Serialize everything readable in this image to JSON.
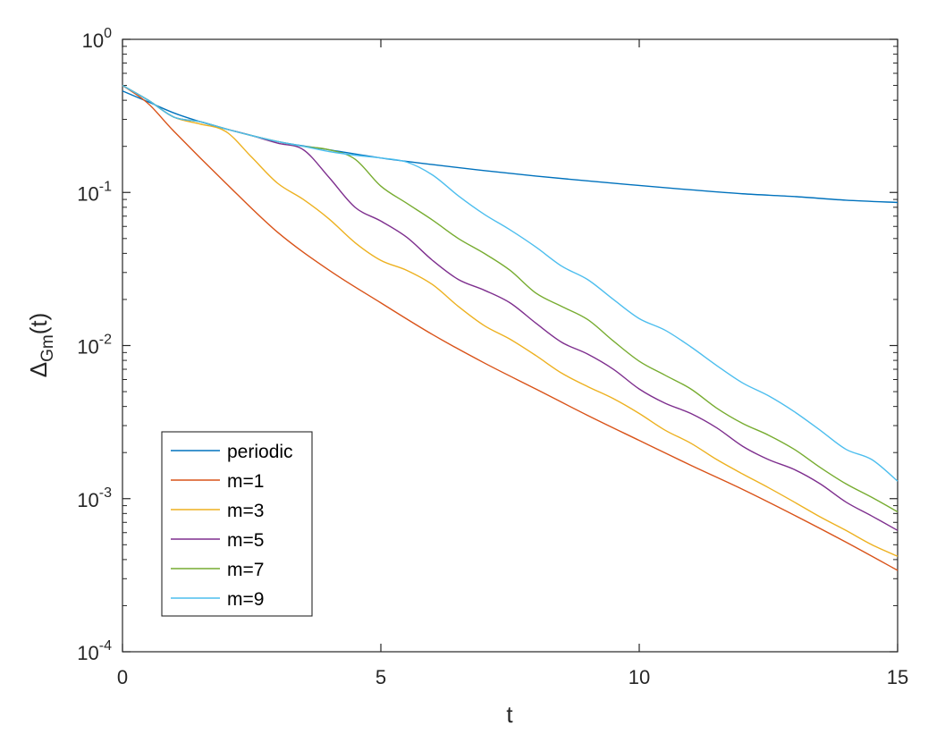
{
  "chart_data": {
    "type": "line",
    "xlabel": "t",
    "ylabel": {
      "base": "Δ",
      "sub": "Gm",
      "rest": "(t)"
    },
    "xlim": [
      0,
      15
    ],
    "ylim": [
      0.0001,
      1
    ],
    "yscale": "log",
    "grid": false,
    "legend_position": "bottom-left",
    "x_ticks": [
      {
        "value": 0,
        "label": "0"
      },
      {
        "value": 5,
        "label": "5"
      },
      {
        "value": 10,
        "label": "10"
      },
      {
        "value": 15,
        "label": "15"
      }
    ],
    "y_ticks": [
      {
        "value": 1,
        "base": "10",
        "exp": "0"
      },
      {
        "value": 0.1,
        "base": "10",
        "exp": "-1"
      },
      {
        "value": 0.01,
        "base": "10",
        "exp": "-2"
      },
      {
        "value": 0.001,
        "base": "10",
        "exp": "-3"
      },
      {
        "value": 0.0001,
        "base": "10",
        "exp": "-4"
      }
    ],
    "series": [
      {
        "name": "periodic",
        "color": "#0072BD",
        "x": [
          0,
          0.5,
          1,
          1.5,
          2,
          3,
          4,
          5,
          6,
          7,
          8,
          9,
          10,
          11,
          12,
          13,
          14,
          15
        ],
        "y": [
          0.46,
          0.39,
          0.33,
          0.29,
          0.26,
          0.215,
          0.19,
          0.168,
          0.152,
          0.139,
          0.128,
          0.119,
          0.111,
          0.104,
          0.098,
          0.094,
          0.089,
          0.086
        ]
      },
      {
        "name": "m=1",
        "color": "#D95319",
        "x": [
          0,
          0.5,
          1,
          2,
          3,
          4,
          5,
          6,
          7,
          8,
          9,
          10,
          11,
          12,
          13,
          14,
          15
        ],
        "y": [
          0.5,
          0.38,
          0.25,
          0.115,
          0.055,
          0.031,
          0.019,
          0.0118,
          0.0077,
          0.0052,
          0.0035,
          0.0024,
          0.00165,
          0.00115,
          0.00078,
          0.00052,
          0.00034
        ]
      },
      {
        "name": "m=3",
        "color": "#EDB120",
        "x": [
          0,
          0.5,
          1,
          1.5,
          2,
          2.5,
          3,
          3.5,
          4,
          4.5,
          5,
          5.5,
          6,
          6.5,
          7,
          7.5,
          8,
          8.5,
          9,
          9.5,
          10,
          10.5,
          11,
          11.5,
          12,
          12.5,
          13,
          13.5,
          14,
          14.5,
          15
        ],
        "y": [
          0.5,
          0.4,
          0.31,
          0.28,
          0.25,
          0.17,
          0.115,
          0.09,
          0.067,
          0.047,
          0.036,
          0.031,
          0.025,
          0.018,
          0.0135,
          0.011,
          0.0086,
          0.0066,
          0.0054,
          0.0045,
          0.0036,
          0.0028,
          0.0023,
          0.0018,
          0.00145,
          0.00118,
          0.00095,
          0.00076,
          0.00062,
          0.0005,
          0.00042
        ]
      },
      {
        "name": "m=5",
        "color": "#7E2F8E",
        "x": [
          0,
          0.5,
          1,
          1.5,
          2,
          2.5,
          3,
          3.5,
          4,
          4.5,
          5,
          5.5,
          6,
          6.5,
          7,
          7.5,
          8,
          8.5,
          9,
          9.5,
          10,
          10.5,
          11,
          11.5,
          12,
          12.5,
          13,
          13.5,
          14,
          14.5,
          15
        ],
        "y": [
          0.5,
          0.4,
          0.31,
          0.29,
          0.26,
          0.235,
          0.21,
          0.19,
          0.125,
          0.08,
          0.065,
          0.051,
          0.036,
          0.027,
          0.023,
          0.019,
          0.014,
          0.0105,
          0.0088,
          0.007,
          0.0052,
          0.0042,
          0.0036,
          0.0029,
          0.0022,
          0.0018,
          0.00155,
          0.00125,
          0.00095,
          0.00077,
          0.00062
        ]
      },
      {
        "name": "m=7",
        "color": "#77AC30",
        "x": [
          0,
          0.5,
          1,
          1.5,
          2,
          2.5,
          3,
          3.5,
          4,
          4.5,
          5,
          5.5,
          6,
          6.5,
          7,
          7.5,
          8,
          8.5,
          9,
          9.5,
          10,
          10.5,
          11,
          11.5,
          12,
          12.5,
          13,
          13.5,
          14,
          14.5,
          15
        ],
        "y": [
          0.5,
          0.4,
          0.31,
          0.29,
          0.26,
          0.235,
          0.215,
          0.2,
          0.19,
          0.165,
          0.11,
          0.085,
          0.066,
          0.05,
          0.04,
          0.031,
          0.022,
          0.018,
          0.0148,
          0.0107,
          0.0079,
          0.0064,
          0.0052,
          0.0039,
          0.0031,
          0.0026,
          0.0021,
          0.0016,
          0.00125,
          0.00102,
          0.00082
        ]
      },
      {
        "name": "m=9",
        "color": "#4DBEEE",
        "x": [
          0,
          0.5,
          1,
          1.5,
          2,
          2.5,
          3,
          3.5,
          4,
          4.5,
          5,
          5.5,
          6,
          6.5,
          7,
          7.5,
          8,
          8.5,
          9,
          9.5,
          10,
          10.5,
          11,
          11.5,
          12,
          12.5,
          13,
          13.5,
          14,
          14.5,
          15
        ],
        "y": [
          0.5,
          0.4,
          0.31,
          0.29,
          0.26,
          0.235,
          0.215,
          0.2,
          0.185,
          0.175,
          0.168,
          0.158,
          0.13,
          0.095,
          0.072,
          0.057,
          0.044,
          0.033,
          0.027,
          0.02,
          0.015,
          0.0126,
          0.0098,
          0.0074,
          0.0057,
          0.0047,
          0.0037,
          0.0028,
          0.0021,
          0.0018,
          0.0013
        ]
      }
    ]
  }
}
